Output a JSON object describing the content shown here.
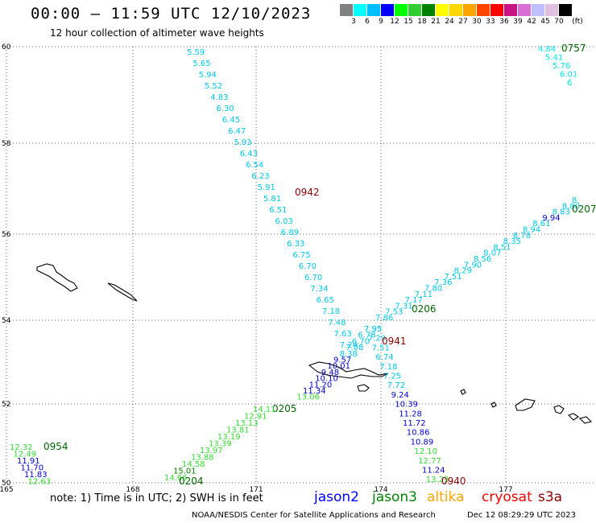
{
  "header": {
    "title": "00:00 – 11:59 UTC 12/10/2023",
    "subtitle": "12 hour collection of altimeter wave heights"
  },
  "colorbar": {
    "colors": [
      "#808080",
      "#00ffff",
      "#00bfff",
      "#0000ff",
      "#00ff00",
      "#32cd32",
      "#008000",
      "#ffff00",
      "#ffd700",
      "#ffa500",
      "#ff4500",
      "#ff0000",
      "#c71585",
      "#da70d6",
      "#c0c0ff",
      "#e0c0e0",
      "#000000"
    ],
    "labels": [
      "3",
      "6",
      "9",
      "12",
      "15",
      "18",
      "21",
      "24",
      "27",
      "30",
      "33",
      "36",
      "39",
      "42",
      "45",
      "70",
      "(ft)"
    ]
  },
  "axes": {
    "lon_labels": [
      "165",
      "168",
      "171",
      "174",
      "177"
    ],
    "lat_labels": [
      "60",
      "58",
      "56",
      "54",
      "52",
      "50"
    ]
  },
  "tracks": [
    {
      "label": "0757",
      "label_color": "#006400",
      "points": [
        {
          "v": "4.84",
          "c": "#00e5e5"
        },
        {
          "v": "5.41",
          "c": "#00e5e5"
        },
        {
          "v": "5.76",
          "c": "#00e5e5"
        },
        {
          "v": "6.01",
          "c": "#00e5e5"
        },
        {
          "v": "6",
          "c": "#00e5e5"
        }
      ]
    },
    {
      "label": "0942",
      "label_color": "#8b0000",
      "points": [
        {
          "v": "5.59",
          "c": "#00c8e8"
        },
        {
          "v": "5.65",
          "c": "#00c8e8"
        },
        {
          "v": "5.94",
          "c": "#00c8e8"
        },
        {
          "v": "5.52",
          "c": "#00c8e8"
        },
        {
          "v": "4.83",
          "c": "#00c8e8"
        },
        {
          "v": "6.30",
          "c": "#00c8e8"
        },
        {
          "v": "6.45",
          "c": "#00c8e8"
        },
        {
          "v": "6.47",
          "c": "#00c8e8"
        },
        {
          "v": "5.93",
          "c": "#00c8e8"
        },
        {
          "v": "6.43",
          "c": "#00c8e8"
        },
        {
          "v": "6.54",
          "c": "#00c8e8"
        },
        {
          "v": "6.23",
          "c": "#00c8e8"
        },
        {
          "v": "5.91",
          "c": "#00c8e8"
        },
        {
          "v": "5.81",
          "c": "#00c8e8"
        },
        {
          "v": "6.51",
          "c": "#00c8e8"
        },
        {
          "v": "6.03",
          "c": "#00c8e8"
        },
        {
          "v": "6.89",
          "c": "#00c8e8"
        },
        {
          "v": "6.33",
          "c": "#00c8e8"
        },
        {
          "v": "6.75",
          "c": "#00c8e8"
        },
        {
          "v": "6.70",
          "c": "#00c8e8"
        },
        {
          "v": "6.70",
          "c": "#00c8e8"
        },
        {
          "v": "7.34",
          "c": "#00c8e8"
        },
        {
          "v": "6.65",
          "c": "#00c8e8"
        },
        {
          "v": "7.18",
          "c": "#00c8e8"
        },
        {
          "v": "7.48",
          "c": "#00c8e8"
        },
        {
          "v": "7.63",
          "c": "#00c8e8"
        },
        {
          "v": "7.24",
          "c": "#00c8e8"
        }
      ]
    },
    {
      "label": "0941",
      "label_color": "#8b0000",
      "points": [
        {
          "v": "7.95",
          "c": "#00c8e8"
        },
        {
          "v": "7.29",
          "c": "#00c8e8"
        },
        {
          "v": "7.51",
          "c": "#00c8e8"
        },
        {
          "v": "6.74",
          "c": "#00c8e8"
        },
        {
          "v": "7.18",
          "c": "#00c8e8"
        },
        {
          "v": "7.25",
          "c": "#00c8e8"
        },
        {
          "v": "7.72",
          "c": "#00c8e8"
        },
        {
          "v": "9.24",
          "c": "#0000cc"
        },
        {
          "v": "10.39",
          "c": "#0000cc"
        },
        {
          "v": "11.28",
          "c": "#0000cc"
        },
        {
          "v": "11.72",
          "c": "#0000cc"
        },
        {
          "v": "10.86",
          "c": "#0000cc"
        },
        {
          "v": "10.89",
          "c": "#0000cc"
        },
        {
          "v": "12.10",
          "c": "#33dd33"
        },
        {
          "v": "12.77",
          "c": "#33dd33"
        },
        {
          "v": "11.24",
          "c": "#0000cc"
        },
        {
          "v": "13.23",
          "c": "#33dd33"
        }
      ]
    },
    {
      "label": "0940",
      "label_color": "#8b0000",
      "points": []
    },
    {
      "label": "0206",
      "label_color": "#006400",
      "points": [
        {
          "v": "7.86",
          "c": "#00c8e8"
        },
        {
          "v": "7.53",
          "c": "#00c8e8"
        },
        {
          "v": "7.31",
          "c": "#00c8e8"
        },
        {
          "v": "7.17",
          "c": "#00c8e8"
        },
        {
          "v": "7.11",
          "c": "#00c8e8"
        },
        {
          "v": "7.80",
          "c": "#00c8e8"
        },
        {
          "v": "7.36",
          "c": "#00c8e8"
        },
        {
          "v": "7.51",
          "c": "#00c8e8"
        },
        {
          "v": "8.29",
          "c": "#00c8e8"
        },
        {
          "v": "7.90",
          "c": "#00c8e8"
        },
        {
          "v": "8.56",
          "c": "#00c8e8"
        },
        {
          "v": "8.07",
          "c": "#00c8e8"
        },
        {
          "v": "8.51",
          "c": "#00c8e8"
        },
        {
          "v": "8.35",
          "c": "#00c8e8"
        },
        {
          "v": "8.78",
          "c": "#00c8e8"
        },
        {
          "v": "8.94",
          "c": "#00c8e8"
        },
        {
          "v": "8.61",
          "c": "#00c8e8"
        },
        {
          "v": "9.94",
          "c": "#0000cc"
        },
        {
          "v": "8.83",
          "c": "#00c8e8"
        },
        {
          "v": "8.80",
          "c": "#00c8e8"
        },
        {
          "v": "8.",
          "c": "#00c8e8"
        }
      ]
    },
    {
      "label": "0207",
      "label_color": "#006400",
      "points": []
    },
    {
      "label": "0205",
      "label_color": "#006400",
      "points": [
        {
          "v": "7.95",
          "c": "#00c8e8"
        },
        {
          "v": "6.78",
          "c": "#00c8e8"
        },
        {
          "v": "6.70",
          "c": "#00c8e8"
        },
        {
          "v": "7.08",
          "c": "#00c8e8"
        },
        {
          "v": "8.38",
          "c": "#00c8e8"
        },
        {
          "v": "9.57",
          "c": "#0000cc"
        },
        {
          "v": "10.01",
          "c": "#0000cc"
        },
        {
          "v": "9.48",
          "c": "#0000cc"
        },
        {
          "v": "10.10",
          "c": "#0000cc"
        },
        {
          "v": "11.20",
          "c": "#0000cc"
        },
        {
          "v": "11.34",
          "c": "#0000cc"
        },
        {
          "v": "13.06",
          "c": "#33dd33"
        }
      ]
    },
    {
      "label": "0204",
      "label_color": "#006400",
      "points": [
        {
          "v": "14.11",
          "c": "#33dd33"
        },
        {
          "v": "12.91",
          "c": "#33dd33"
        },
        {
          "v": "13.13",
          "c": "#33dd33"
        },
        {
          "v": "13.81",
          "c": "#33dd33"
        },
        {
          "v": "13.19",
          "c": "#33dd33"
        },
        {
          "v": "13.39",
          "c": "#33dd33"
        },
        {
          "v": "13.97",
          "c": "#33dd33"
        },
        {
          "v": "13.88",
          "c": "#33dd33"
        },
        {
          "v": "14.58",
          "c": "#33dd33"
        },
        {
          "v": "15.01",
          "c": "#008000"
        },
        {
          "v": "14.66",
          "c": "#33dd33"
        }
      ]
    },
    {
      "label": "0954",
      "label_color": "#006400",
      "points": [
        {
          "v": "12.32",
          "c": "#33dd33"
        },
        {
          "v": "12.49",
          "c": "#33dd33"
        },
        {
          "v": "11.91",
          "c": "#0000cc"
        },
        {
          "v": "11.70",
          "c": "#0000cc"
        },
        {
          "v": "11.83",
          "c": "#0000cc"
        },
        {
          "v": "12.63",
          "c": "#33dd33"
        }
      ]
    }
  ],
  "footer": {
    "note": "note: 1) Time is in UTC; 2) SWH is in feet",
    "satellites": [
      {
        "name": "jason2",
        "color": "#0000ff"
      },
      {
        "name": "jason3",
        "color": "#008000"
      },
      {
        "name": "altika",
        "color": "#ffa500"
      },
      {
        "name": "cryosat",
        "color": "#ff0000"
      },
      {
        "name": "s3a",
        "color": "#8b0000"
      }
    ],
    "credit": "NOAA/NESDIS Center for Satellite Applications and Research",
    "timestamp": "Dec 12 08:29:29 UTC 2023"
  }
}
